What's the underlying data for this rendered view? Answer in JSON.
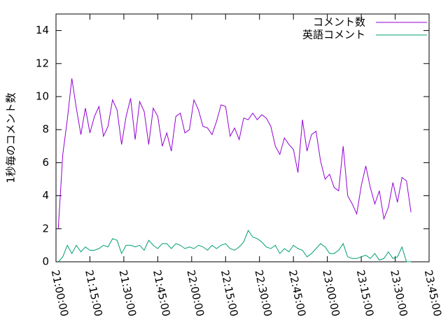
{
  "chart_data": {
    "type": "line",
    "ylabel": "1秒毎のコメント数",
    "x": [
      "21:01:00",
      "21:03:00",
      "21:05:00",
      "21:07:00",
      "21:09:00",
      "21:11:00",
      "21:13:00",
      "21:15:00",
      "21:17:00",
      "21:19:00",
      "21:21:00",
      "21:23:00",
      "21:25:00",
      "21:27:00",
      "21:29:00",
      "21:31:00",
      "21:33:00",
      "21:35:00",
      "21:37:00",
      "21:39:00",
      "21:41:00",
      "21:43:00",
      "21:45:00",
      "21:47:00",
      "21:49:00",
      "21:51:00",
      "21:53:00",
      "21:55:00",
      "21:57:00",
      "21:59:00",
      "22:01:00",
      "22:03:00",
      "22:05:00",
      "22:07:00",
      "22:09:00",
      "22:11:00",
      "22:13:00",
      "22:15:00",
      "22:17:00",
      "22:19:00",
      "22:21:00",
      "22:23:00",
      "22:25:00",
      "22:27:00",
      "22:29:00",
      "22:31:00",
      "22:33:00",
      "22:35:00",
      "22:37:00",
      "22:39:00",
      "22:41:00",
      "22:43:00",
      "22:45:00",
      "22:47:00",
      "22:49:00",
      "22:51:00",
      "22:53:00",
      "22:55:00",
      "22:57:00",
      "22:59:00",
      "23:01:00",
      "23:03:00",
      "23:05:00",
      "23:07:00",
      "23:09:00",
      "23:11:00",
      "23:13:00",
      "23:15:00",
      "23:17:00",
      "23:19:00",
      "23:21:00",
      "23:23:00",
      "23:25:00",
      "23:27:00",
      "23:29:00",
      "23:31:00",
      "23:33:00",
      "23:35:00",
      "23:37:00"
    ],
    "series": [
      {
        "name": "コメント数",
        "color": "#9400d3",
        "values": [
          2.0,
          6.5,
          8.6,
          11.1,
          9.3,
          7.7,
          9.3,
          7.8,
          8.8,
          9.4,
          7.6,
          8.2,
          9.8,
          9.2,
          7.1,
          8.8,
          9.9,
          7.4,
          9.7,
          9.1,
          7.1,
          9.3,
          8.8,
          7.0,
          7.8,
          6.7,
          8.8,
          9.0,
          7.8,
          8.0,
          9.8,
          9.2,
          8.2,
          8.1,
          7.7,
          8.5,
          9.5,
          9.4,
          7.6,
          8.1,
          7.4,
          8.7,
          8.6,
          9.0,
          8.6,
          8.9,
          8.7,
          8.2,
          7.0,
          6.5,
          7.5,
          7.1,
          6.8,
          5.4,
          8.6,
          6.7,
          7.7,
          7.9,
          6.1,
          5.0,
          5.3,
          4.5,
          4.3,
          7.0,
          4.0,
          3.5,
          2.9,
          4.6,
          5.8,
          4.5,
          3.5,
          4.3,
          2.6,
          3.3,
          4.8,
          3.6,
          5.1,
          4.9,
          3.0
        ]
      },
      {
        "name": "英語コメント",
        "color": "#009e73",
        "values": [
          0.0,
          0.3,
          1.0,
          0.5,
          1.0,
          0.6,
          0.9,
          0.7,
          0.7,
          0.8,
          1.0,
          0.9,
          1.4,
          1.3,
          0.5,
          1.0,
          1.0,
          0.9,
          1.0,
          0.7,
          1.3,
          1.0,
          0.8,
          1.1,
          1.1,
          0.8,
          1.1,
          1.0,
          0.8,
          0.9,
          0.8,
          1.0,
          0.9,
          0.7,
          1.0,
          0.8,
          1.0,
          1.1,
          0.8,
          0.7,
          0.9,
          1.2,
          1.9,
          1.5,
          1.4,
          1.2,
          0.9,
          0.8,
          1.0,
          0.5,
          0.8,
          0.6,
          1.0,
          0.8,
          0.7,
          0.3,
          0.5,
          0.8,
          1.1,
          0.9,
          0.5,
          0.5,
          0.7,
          1.1,
          0.3,
          0.2,
          0.2,
          0.3,
          0.4,
          0.2,
          0.5,
          0.1,
          0.2,
          0.6,
          0.2,
          0.3,
          0.9,
          0.0,
          0.0
        ]
      }
    ],
    "xlim": [
      "21:00:00",
      "23:45:00"
    ],
    "xticks": [
      "21:00:00",
      "21:15:00",
      "21:30:00",
      "21:45:00",
      "22:00:00",
      "22:15:00",
      "22:30:00",
      "22:45:00",
      "23:00:00",
      "23:15:00",
      "23:30:00",
      "23:45:00"
    ],
    "ylim": [
      0,
      15
    ],
    "yticks": [
      0,
      2,
      4,
      6,
      8,
      10,
      12,
      14
    ],
    "legend": "top-right"
  }
}
